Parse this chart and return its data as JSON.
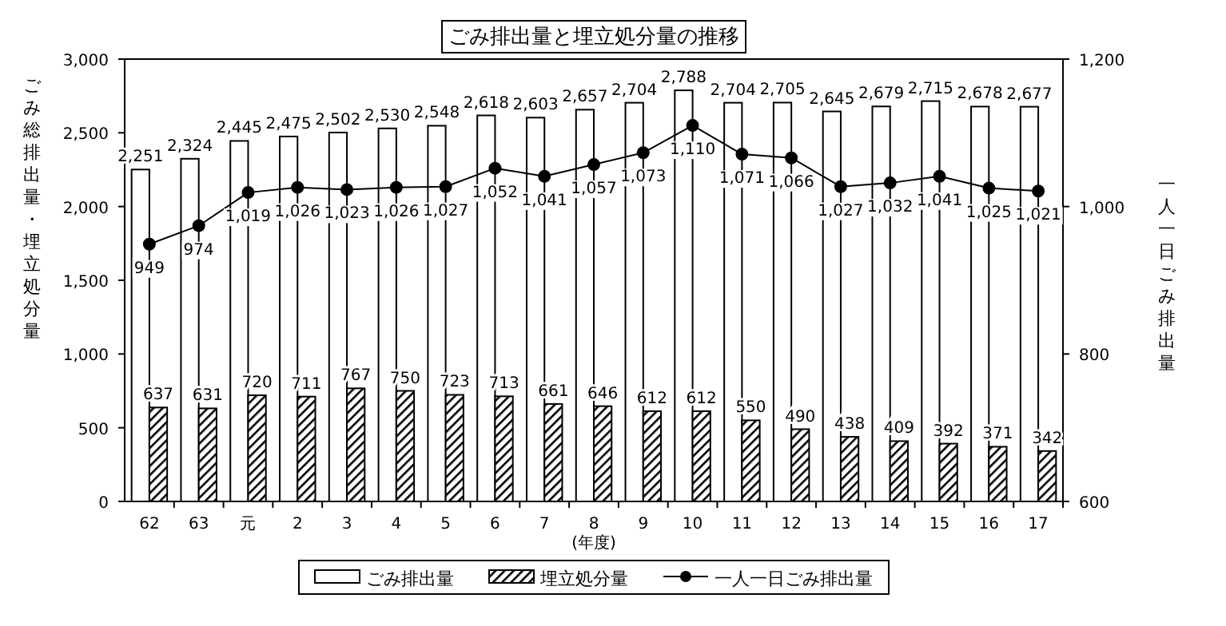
{
  "chart_data": {
    "type": "bar",
    "title": "ごみ排出量と埋立処分量の推移",
    "xlabel": "(年度)",
    "ylabel": "ごみ総排出量・埋立処分量",
    "y2label": "一人一日ごみ排出量",
    "categories": [
      "62",
      "63",
      "元",
      "2",
      "3",
      "4",
      "5",
      "6",
      "7",
      "8",
      "9",
      "10",
      "11",
      "12",
      "13",
      "14",
      "15",
      "16",
      "17"
    ],
    "series": [
      {
        "name": "ごみ排出量",
        "color": "#ffffff",
        "values": [
          2251,
          2324,
          2445,
          2475,
          2502,
          2530,
          2548,
          2618,
          2603,
          2657,
          2704,
          2788,
          2704,
          2705,
          2645,
          2679,
          2715,
          2678,
          2677
        ],
        "value_labels": [
          "2,251",
          "2,324",
          "2,445",
          "2,475",
          "2,502",
          "2,530",
          "2,548",
          "2,618",
          "2,603",
          "2,657",
          "2,704",
          "2,788",
          "2,704",
          "2,705",
          "2,645",
          "2,679",
          "2,715",
          "2,678",
          "2,677"
        ]
      },
      {
        "name": "埋立処分量",
        "color": "#000000",
        "values": [
          637,
          631,
          720,
          711,
          767,
          750,
          723,
          713,
          661,
          646,
          612,
          612,
          550,
          490,
          438,
          409,
          392,
          371,
          342
        ],
        "value_labels": [
          "637",
          "631",
          "720",
          "711",
          "767",
          "750",
          "723",
          "713",
          "661",
          "646",
          "612",
          "612",
          "550",
          "490",
          "438",
          "409",
          "392",
          "371",
          "342"
        ]
      },
      {
        "name": "一人一日ごみ排出量",
        "type": "line",
        "axis": "y2",
        "marker": "circle",
        "color": "#000000",
        "values": [
          949,
          974,
          1019,
          1026,
          1023,
          1026,
          1027,
          1052,
          1041,
          1057,
          1073,
          1110,
          1071,
          1066,
          1027,
          1032,
          1041,
          1025,
          1021
        ],
        "value_labels": [
          "949",
          "974",
          "1,019",
          "1,026",
          "1,023",
          "1,026",
          "1,027",
          "1,052",
          "1,041",
          "1,057",
          "1,073",
          "1,110",
          "1,071",
          "1,066",
          "1,027",
          "1,032",
          "1,041",
          "1,025",
          "1,021"
        ]
      }
    ],
    "ylim": [
      0,
      3000
    ],
    "yticks": [
      0,
      500,
      {
        "value": 1000,
        "label": "1,000"
      },
      {
        "value": 1500,
        "label": "1,500"
      },
      {
        "value": 2000,
        "label": "2,000"
      },
      {
        "value": 2500,
        "label": "2,500"
      },
      {
        "value": 3000,
        "label": "3,000"
      }
    ],
    "y2lim": [
      600,
      1200
    ],
    "y2ticks": [
      600,
      800,
      {
        "value": 1000,
        "label": "1,000"
      },
      {
        "value": 1200,
        "label": "1,200"
      }
    ],
    "grid": false,
    "legend": "bottom"
  }
}
